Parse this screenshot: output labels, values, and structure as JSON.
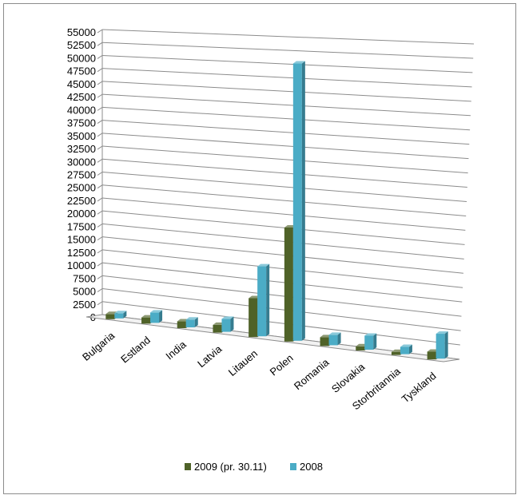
{
  "chart_data": {
    "type": "bar",
    "title": "",
    "xlabel": "",
    "ylabel": "",
    "ylim": [
      0,
      55000
    ],
    "ytick_step": 2500,
    "grid": true,
    "legend_position": "bottom",
    "categories": [
      "Bulgaria",
      "Estland",
      "India",
      "Latvia",
      "Litauen",
      "Polen",
      "Romania",
      "Slovakia",
      "Storbritannia",
      "Tyskland"
    ],
    "series": [
      {
        "name": "2009 (pr. 30.11)",
        "color": "#4f6228",
        "values": [
          1000,
          1200,
          1300,
          1500,
          7500,
          22000,
          1700,
          800,
          600,
          1500
        ]
      },
      {
        "name": "2008",
        "color": "#4bacc6",
        "values": [
          1000,
          2000,
          1500,
          2500,
          13500,
          53500,
          2000,
          2700,
          1400,
          4800
        ]
      }
    ]
  }
}
